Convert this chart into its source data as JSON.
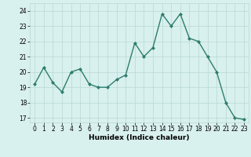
{
  "x": [
    0,
    1,
    2,
    3,
    4,
    5,
    6,
    7,
    8,
    9,
    10,
    11,
    12,
    13,
    14,
    15,
    16,
    17,
    18,
    19,
    20,
    21,
    22,
    23
  ],
  "y": [
    19.2,
    20.3,
    19.3,
    18.7,
    20.0,
    20.2,
    19.2,
    19.0,
    19.0,
    19.5,
    19.8,
    21.9,
    21.0,
    21.6,
    23.8,
    23.0,
    23.8,
    22.2,
    22.0,
    21.0,
    20.0,
    18.0,
    17.0,
    16.9
  ],
  "line_color": "#2e7d6e",
  "marker": "D",
  "marker_size": 2.0,
  "linewidth": 1.0,
  "xlabel": "Humidex (Indice chaleur)",
  "xlim": [
    -0.5,
    23.5
  ],
  "ylim": [
    16.7,
    24.5
  ],
  "yticks": [
    17,
    18,
    19,
    20,
    21,
    22,
    23,
    24
  ],
  "xticks": [
    0,
    1,
    2,
    3,
    4,
    5,
    6,
    7,
    8,
    9,
    10,
    11,
    12,
    13,
    14,
    15,
    16,
    17,
    18,
    19,
    20,
    21,
    22,
    23
  ],
  "bg_color": "#d8f0ee",
  "grid_color": "#b8d8d4",
  "label_fontsize": 6.5,
  "tick_fontsize": 5.5
}
